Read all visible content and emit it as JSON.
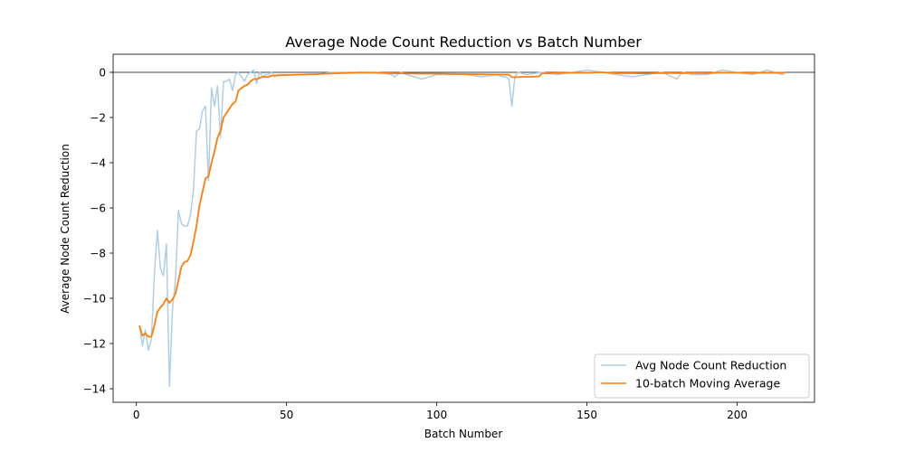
{
  "chart_data": {
    "type": "line",
    "title": "Average Node Count Reduction vs Batch Number",
    "xlabel": "Batch Number",
    "ylabel": "Average Node Count Reduction",
    "xlim": [
      -7.75,
      225.75
    ],
    "ylim": [
      -14.6,
      0.8
    ],
    "xticks": [
      0,
      50,
      100,
      150,
      200
    ],
    "yticks": [
      -14,
      -12,
      -10,
      -8,
      -6,
      -4,
      -2,
      0
    ],
    "xtick_labels": [
      "0",
      "50",
      "100",
      "150",
      "200"
    ],
    "ytick_labels": [
      "−14",
      "−12",
      "−10",
      "−8",
      "−6",
      "−4",
      "−2",
      "0"
    ],
    "reference_line_y": 0,
    "grid": false,
    "legend_position": "lower-right",
    "series": [
      {
        "name": "Avg Node Count Reduction",
        "color": "#aecfe5",
        "x": [
          1,
          2,
          3,
          4,
          5,
          6,
          7,
          8,
          9,
          10,
          11,
          12,
          13,
          14,
          15,
          16,
          17,
          18,
          19,
          20,
          21,
          22,
          23,
          24,
          25,
          26,
          27,
          28,
          29,
          30,
          31,
          32,
          33,
          34,
          35,
          36,
          37,
          38,
          39,
          40,
          41,
          42,
          43,
          44,
          45,
          46,
          47,
          48,
          49,
          50,
          55,
          60,
          65,
          70,
          75,
          80,
          85,
          86,
          87,
          88,
          90,
          95,
          100,
          105,
          110,
          115,
          120,
          122,
          123,
          124,
          125,
          126,
          127,
          130,
          135,
          140,
          145,
          150,
          155,
          160,
          165,
          170,
          175,
          180,
          181,
          182,
          185,
          190,
          195,
          200,
          205,
          210,
          215,
          216
        ],
        "y": [
          -11.2,
          -12.1,
          -11.4,
          -12.3,
          -11.8,
          -8.9,
          -7.0,
          -8.7,
          -9.0,
          -7.6,
          -13.9,
          -10.5,
          -9.2,
          -6.1,
          -6.7,
          -6.8,
          -6.8,
          -6.3,
          -5.2,
          -2.6,
          -2.5,
          -1.7,
          -1.5,
          -4.8,
          -0.7,
          -1.5,
          -0.6,
          -2.9,
          -0.4,
          -0.4,
          -0.3,
          -0.8,
          -0.1,
          0.0,
          -0.2,
          -0.4,
          -0.1,
          0.0,
          0.1,
          -0.5,
          0.0,
          -0.2,
          -0.1,
          -0.1,
          0.0,
          -0.2,
          -0.1,
          -0.1,
          -0.1,
          -0.1,
          -0.1,
          -0.1,
          0.0,
          0.0,
          0.0,
          0.0,
          -0.1,
          -0.2,
          -0.1,
          0.0,
          -0.1,
          -0.3,
          -0.1,
          -0.1,
          -0.1,
          -0.2,
          -0.1,
          -0.2,
          -0.2,
          -0.3,
          -1.5,
          -0.2,
          0.0,
          -0.1,
          0.0,
          -0.1,
          0.0,
          0.1,
          0.0,
          -0.1,
          -0.2,
          -0.1,
          0.0,
          -0.3,
          -0.1,
          0.0,
          -0.1,
          -0.1,
          0.1,
          0.0,
          -0.1,
          0.1,
          -0.1,
          0.0
        ]
      },
      {
        "name": "10-batch Moving Average",
        "color": "#ff7f0e",
        "x": [
          1,
          2,
          3,
          4,
          5,
          6,
          7,
          8,
          9,
          10,
          11,
          12,
          13,
          14,
          15,
          16,
          17,
          18,
          19,
          20,
          21,
          22,
          23,
          24,
          25,
          26,
          27,
          28,
          29,
          30,
          31,
          32,
          33,
          34,
          35,
          36,
          37,
          38,
          39,
          40,
          41,
          42,
          43,
          44,
          45,
          50,
          55,
          60,
          65,
          70,
          75,
          80,
          85,
          90,
          95,
          100,
          105,
          110,
          115,
          120,
          124,
          125,
          130,
          134,
          135,
          140,
          145,
          150,
          155,
          160,
          165,
          170,
          175,
          180,
          185,
          190,
          195,
          200,
          205,
          210,
          215,
          216
        ],
        "y": [
          -11.2,
          -11.65,
          -11.55,
          -11.7,
          -11.7,
          -11.2,
          -10.6,
          -10.4,
          -10.25,
          -10.0,
          -10.2,
          -10.05,
          -9.8,
          -9.2,
          -8.6,
          -8.4,
          -8.35,
          -8.1,
          -7.5,
          -6.8,
          -5.9,
          -5.3,
          -4.7,
          -4.6,
          -4.0,
          -3.5,
          -2.9,
          -2.6,
          -2.0,
          -1.8,
          -1.6,
          -1.4,
          -1.3,
          -0.8,
          -0.7,
          -0.6,
          -0.55,
          -0.4,
          -0.3,
          -0.3,
          -0.25,
          -0.2,
          -0.2,
          -0.2,
          -0.15,
          -0.12,
          -0.1,
          -0.08,
          -0.05,
          -0.03,
          -0.01,
          -0.02,
          -0.04,
          -0.05,
          -0.06,
          -0.06,
          -0.07,
          -0.08,
          -0.09,
          -0.1,
          -0.1,
          -0.22,
          -0.2,
          -0.18,
          -0.05,
          -0.03,
          -0.02,
          -0.02,
          0.0,
          -0.04,
          -0.04,
          -0.05,
          -0.03,
          -0.04,
          -0.03,
          -0.04,
          -0.01,
          -0.02,
          -0.03,
          -0.02,
          -0.02,
          -0.02
        ]
      }
    ]
  }
}
